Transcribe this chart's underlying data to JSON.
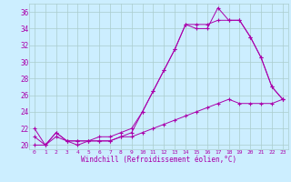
{
  "xlabel": "Windchill (Refroidissement éolien,°C)",
  "x": [
    0,
    1,
    2,
    3,
    4,
    5,
    6,
    7,
    8,
    9,
    10,
    11,
    12,
    13,
    14,
    15,
    16,
    17,
    18,
    19,
    20,
    21,
    22,
    23
  ],
  "line1": [
    22,
    20,
    21.5,
    20.5,
    20,
    20.5,
    20.5,
    20.5,
    21,
    21.5,
    24,
    26.5,
    29,
    31.5,
    34.5,
    34.0,
    34.0,
    36.5,
    35,
    35,
    33,
    30.5,
    27,
    25.5
  ],
  "line2": [
    21,
    20,
    21.5,
    20.5,
    20.5,
    20.5,
    21,
    21,
    21.5,
    22,
    24,
    26.5,
    29,
    31.5,
    34.5,
    34.5,
    34.5,
    35,
    35,
    35,
    33,
    30.5,
    27,
    25.5
  ],
  "line3": [
    20,
    20,
    21,
    20.5,
    20.5,
    20.5,
    20.5,
    20.5,
    21,
    21,
    21.5,
    22,
    22.5,
    23,
    23.5,
    24,
    24.5,
    25,
    25.5,
    25,
    25,
    25,
    25,
    25.5
  ],
  "line_color": "#aa00aa",
  "bg_color": "#cceeff",
  "grid_color": "#aacccc",
  "ylim": [
    19.5,
    37
  ],
  "xlim": [
    -0.5,
    23.5
  ],
  "yticks": [
    20,
    22,
    24,
    26,
    28,
    30,
    32,
    34,
    36
  ],
  "xticks": [
    0,
    1,
    2,
    3,
    4,
    5,
    6,
    7,
    8,
    9,
    10,
    11,
    12,
    13,
    14,
    15,
    16,
    17,
    18,
    19,
    20,
    21,
    22,
    23
  ]
}
